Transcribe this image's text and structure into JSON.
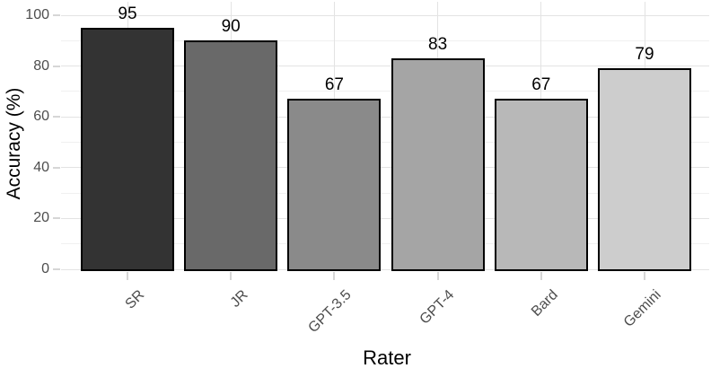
{
  "figure": {
    "background": "#ffffff"
  },
  "chart_data": {
    "type": "bar",
    "title": "",
    "xlabel": "Rater",
    "ylabel": "Accuracy (%)",
    "categories": [
      "SR",
      "JR",
      "GPT-3.5",
      "GPT-4",
      "Bard",
      "Gemini"
    ],
    "values": [
      95,
      90,
      67,
      83,
      67,
      79
    ],
    "bar_labels": [
      "95",
      "90",
      "67",
      "83",
      "67",
      "79"
    ],
    "bar_fill_colors": [
      "#333333",
      "#696969",
      "#8a8a8a",
      "#a5a5a5",
      "#b8b8b8",
      "#cdcdcd"
    ],
    "bar_border_color": "#000000",
    "ylim": [
      0,
      100
    ],
    "yticks": [
      0,
      20,
      40,
      60,
      80,
      100
    ],
    "ytick_labels": [
      "0",
      "20",
      "40",
      "60",
      "80",
      "100"
    ],
    "minor_ytick_step": 10,
    "grid": "on",
    "legend": "none",
    "x_tick_angle_deg": 45,
    "colors": {
      "major_gridline": "#e3e3e3",
      "minor_gridline": "#f0f0f0",
      "axis_tick": "#d6d6d6",
      "tick_label": "#4d4d4d",
      "axis_title": "#000000",
      "value_label": "#000000"
    }
  }
}
